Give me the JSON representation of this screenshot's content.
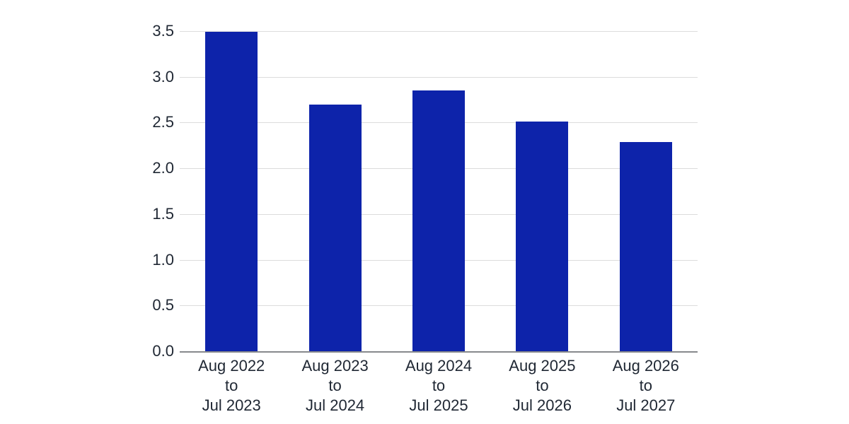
{
  "chart_data": {
    "type": "bar",
    "title": "",
    "xlabel": "",
    "ylabel": "",
    "categories": [
      [
        "Aug 2022",
        "to",
        "Jul 2023"
      ],
      [
        "Aug 2023",
        "to",
        "Jul 2024"
      ],
      [
        "Aug 2024",
        "to",
        "Jul 2025"
      ],
      [
        "Aug 2025",
        "to",
        "Jul 2026"
      ],
      [
        "Aug 2026",
        "to",
        "Jul 2027"
      ]
    ],
    "values": [
      3.49,
      2.7,
      2.85,
      2.51,
      2.29
    ],
    "ylim": [
      0,
      3.5
    ],
    "yticks": [
      0.0,
      0.5,
      1.0,
      1.5,
      2.0,
      2.5,
      3.0,
      3.5
    ],
    "ytick_labels": [
      "0.0",
      "0.5",
      "1.0",
      "1.5",
      "2.0",
      "2.5",
      "3.0",
      "3.5"
    ],
    "grid": true,
    "legend_position": "none",
    "colors": {
      "bar": "#0d23aa",
      "gridline": "#dcdcdc",
      "axis_line": "#87898c",
      "text": "#1f2733",
      "background": "#ffffff"
    }
  }
}
